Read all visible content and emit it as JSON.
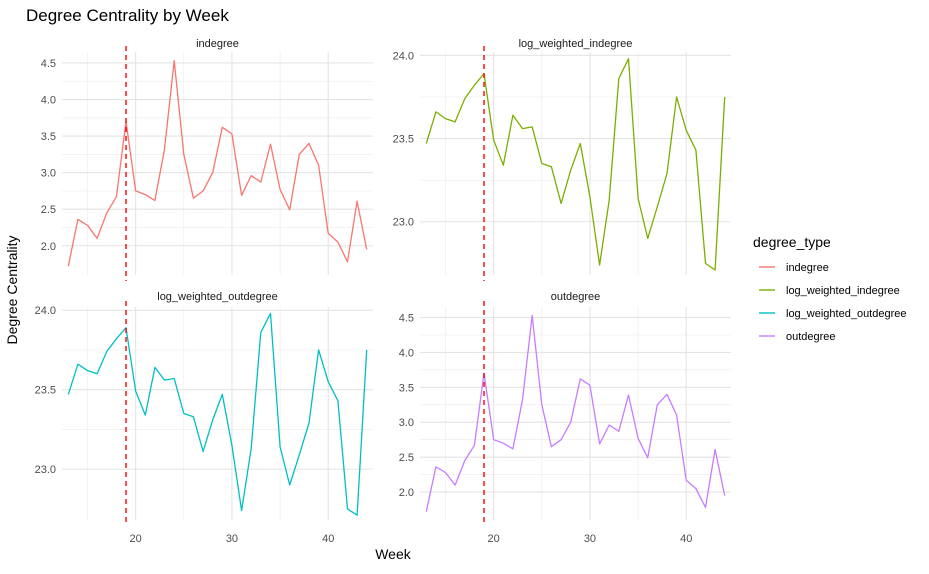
{
  "title": "Degree Centrality by Week",
  "xlabel": "Week",
  "ylabel": "Degree Centrality",
  "legend": {
    "title": "degree_type",
    "placement": "right",
    "items": [
      {
        "label": "indegree",
        "color": "#F8766D"
      },
      {
        "label": "log_weighted_indegree",
        "color": "#7CAE00"
      },
      {
        "label": "log_weighted_outdegree",
        "color": "#00BFC4"
      },
      {
        "label": "outdegree",
        "color": "#C77CFF"
      }
    ]
  },
  "chart_data": {
    "type": "line",
    "title": "Degree Centrality by Week",
    "xlabel": "Week",
    "ylabel": "Degree Centrality",
    "grid": true,
    "reference_line": {
      "x": 19,
      "color": "#FF0000",
      "style": "dashed"
    },
    "x": [
      13,
      14,
      15,
      16,
      17,
      18,
      19,
      20,
      21,
      22,
      23,
      24,
      25,
      26,
      27,
      28,
      29,
      30,
      31,
      32,
      33,
      34,
      35,
      36,
      37,
      38,
      39,
      40,
      41,
      42,
      43,
      44
    ],
    "panels": [
      {
        "strip": "indegree",
        "color": "#F8766D",
        "xlim": [
          12.35,
          44.65
        ],
        "ylim": [
          1.6,
          4.65
        ],
        "xticks": [
          20,
          30,
          40
        ],
        "yticks": [
          2.0,
          2.5,
          3.0,
          3.5,
          4.0,
          4.5
        ],
        "ytick_labels": [
          "2.0",
          "2.5",
          "3.0",
          "3.5",
          "4.0",
          "4.5"
        ],
        "values": [
          1.72,
          2.36,
          2.28,
          2.1,
          2.45,
          2.67,
          3.7,
          2.75,
          2.7,
          2.62,
          3.32,
          4.53,
          3.25,
          2.65,
          2.75,
          3.0,
          3.62,
          3.53,
          2.69,
          2.96,
          2.87,
          3.39,
          2.77,
          2.49,
          3.25,
          3.4,
          3.1,
          2.17,
          2.05,
          1.78,
          2.61,
          1.95
        ]
      },
      {
        "strip": "log_weighted_indegree",
        "color": "#7CAE00",
        "xlim": [
          12.35,
          44.65
        ],
        "ylim": [
          22.68,
          24.02
        ],
        "xticks": [
          20,
          30,
          40
        ],
        "yticks": [
          23.0,
          23.5,
          24.0
        ],
        "ytick_labels": [
          "23.0",
          "23.5",
          "24.0"
        ],
        "values": [
          23.47,
          23.66,
          23.62,
          23.6,
          23.74,
          23.82,
          23.89,
          23.49,
          23.34,
          23.64,
          23.56,
          23.57,
          23.35,
          23.33,
          23.11,
          23.31,
          23.47,
          23.15,
          22.74,
          23.13,
          23.86,
          23.98,
          23.14,
          22.9,
          23.09,
          23.29,
          23.75,
          23.55,
          23.43,
          22.75,
          22.71,
          23.75
        ]
      },
      {
        "strip": "log_weighted_outdegree",
        "color": "#00BFC4",
        "xlim": [
          12.35,
          44.65
        ],
        "ylim": [
          22.68,
          24.02
        ],
        "xticks": [
          20,
          30,
          40
        ],
        "yticks": [
          23.0,
          23.5,
          24.0
        ],
        "ytick_labels": [
          "23.0",
          "23.5",
          "24.0"
        ],
        "values": [
          23.47,
          23.66,
          23.62,
          23.6,
          23.74,
          23.82,
          23.89,
          23.49,
          23.34,
          23.64,
          23.56,
          23.57,
          23.35,
          23.33,
          23.11,
          23.31,
          23.47,
          23.15,
          22.74,
          23.13,
          23.86,
          23.98,
          23.14,
          22.9,
          23.09,
          23.29,
          23.75,
          23.55,
          23.43,
          22.75,
          22.71,
          23.75
        ]
      },
      {
        "strip": "outdegree",
        "color": "#C77CFF",
        "xlim": [
          12.35,
          44.65
        ],
        "ylim": [
          1.6,
          4.65
        ],
        "xticks": [
          20,
          30,
          40
        ],
        "yticks": [
          2.0,
          2.5,
          3.0,
          3.5,
          4.0,
          4.5
        ],
        "ytick_labels": [
          "2.0",
          "2.5",
          "3.0",
          "3.5",
          "4.0",
          "4.5"
        ],
        "values": [
          1.72,
          2.36,
          2.28,
          2.1,
          2.45,
          2.67,
          3.7,
          2.75,
          2.7,
          2.62,
          3.32,
          4.53,
          3.25,
          2.65,
          2.75,
          3.0,
          3.62,
          3.53,
          2.69,
          2.96,
          2.87,
          3.39,
          2.77,
          2.49,
          3.25,
          3.4,
          3.1,
          2.17,
          2.05,
          1.78,
          2.61,
          1.95
        ]
      }
    ]
  }
}
